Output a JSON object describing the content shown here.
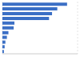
{
  "chart_data": {
    "type": "bar",
    "orientation": "horizontal",
    "categories": [
      null,
      null,
      null,
      null,
      null,
      null,
      null,
      null,
      null,
      null,
      null
    ],
    "values": [
      86,
      73,
      66,
      62,
      16,
      15,
      8,
      6,
      4,
      3,
      2
    ],
    "color": "#3b6fc5",
    "xlim": [
      0,
      100
    ],
    "xticks": [
      0,
      25,
      50,
      75,
      100
    ],
    "grid": true,
    "tick_labels": false
  }
}
